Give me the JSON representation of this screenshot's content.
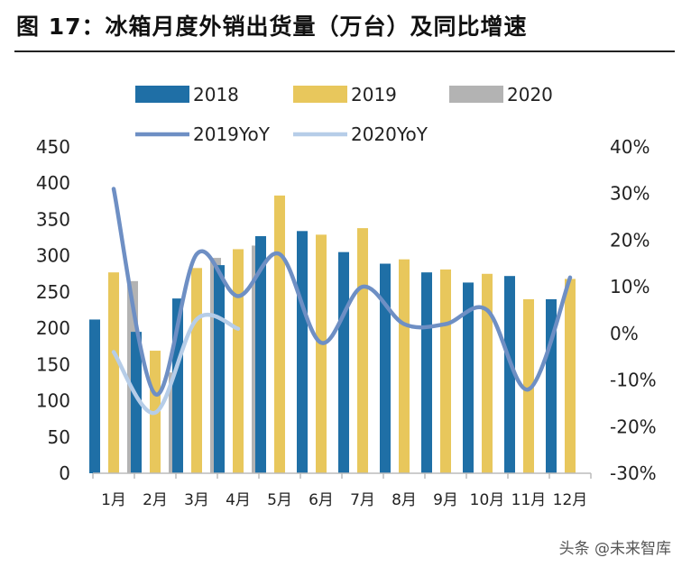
{
  "figure": {
    "title": "图  17：冰箱月度外销出货量（万台）及同比增速",
    "watermark": "头条 @未来智库"
  },
  "chart_data": {
    "type": "bar",
    "categories": [
      "1月",
      "2月",
      "3月",
      "4月",
      "5月",
      "6月",
      "7月",
      "8月",
      "9月",
      "10月",
      "11月",
      "12月"
    ],
    "series": [
      {
        "name": "2018",
        "color": "#1f6fa6",
        "values": [
          212,
          195,
          241,
          287,
          327,
          334,
          305,
          289,
          277,
          263,
          272,
          240
        ]
      },
      {
        "name": "2019",
        "color": "#e8c75c",
        "values": [
          277,
          169,
          283,
          309,
          383,
          329,
          338,
          295,
          281,
          275,
          240,
          268
        ]
      },
      {
        "name": "2020",
        "color": "#b3b3b3",
        "values": [
          265,
          139,
          297,
          314,
          null,
          null,
          null,
          null,
          null,
          null,
          null,
          null
        ]
      }
    ],
    "line_series": [
      {
        "name": "2019YoY",
        "color": "#6e8fc4",
        "axis": "right",
        "values": [
          31,
          -13,
          17,
          8,
          17,
          -2,
          10,
          2,
          2,
          5,
          -12,
          12
        ]
      },
      {
        "name": "2020YoY",
        "color": "#b6cde8",
        "axis": "right",
        "values": [
          -4,
          -17,
          3,
          1,
          null,
          null,
          null,
          null,
          null,
          null,
          null,
          null
        ]
      }
    ],
    "ylim": [
      0,
      450
    ],
    "yticks": [
      "0",
      "50",
      "100",
      "150",
      "200",
      "250",
      "300",
      "350",
      "400",
      "450"
    ],
    "y2lim": [
      -30,
      40
    ],
    "y2ticks": [
      "-30%",
      "-20%",
      "-10%",
      "0%",
      "10%",
      "20%",
      "30%",
      "40%"
    ],
    "legend": "top"
  }
}
